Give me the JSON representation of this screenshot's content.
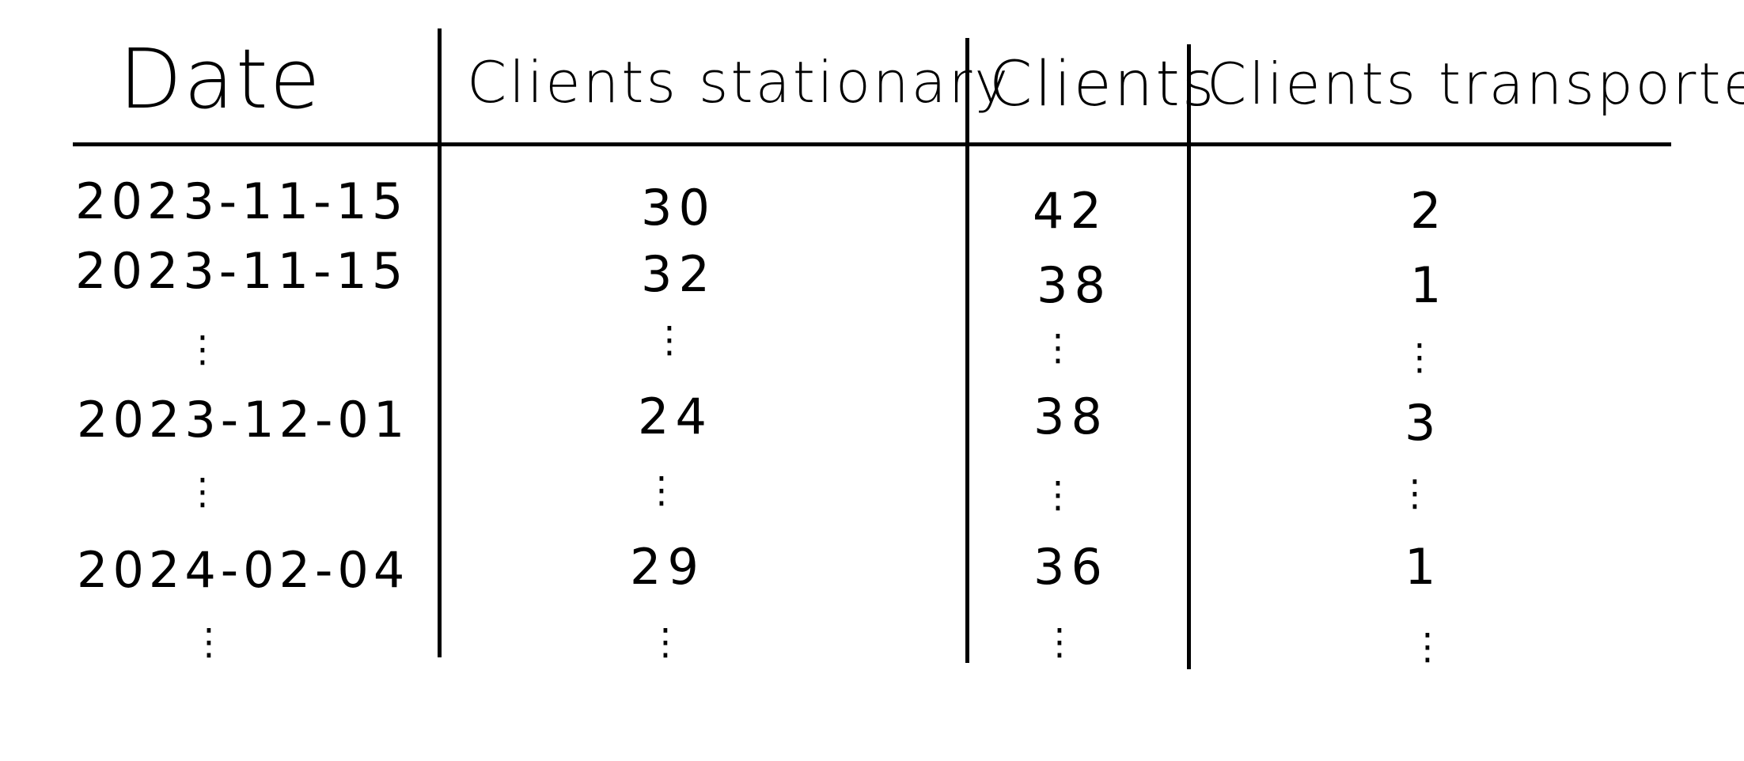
{
  "table": {
    "headers": {
      "date": "Date",
      "stationary": "Clients stationary",
      "clients": "Clients",
      "transported": "Clients transported"
    },
    "rows": [
      {
        "date": "2023-11-15",
        "stationary": "30",
        "clients": "42",
        "transported": "2"
      },
      {
        "date": "2023-11-15",
        "stationary": "32",
        "clients": "38",
        "transported": "1"
      },
      {
        "date": "2023-12-01",
        "stationary": "24",
        "clients": "38",
        "transported": "3"
      },
      {
        "date": "2024-02-04",
        "stationary": "29",
        "clients": "36",
        "transported": "1"
      }
    ],
    "ellipsis": "⋮"
  }
}
